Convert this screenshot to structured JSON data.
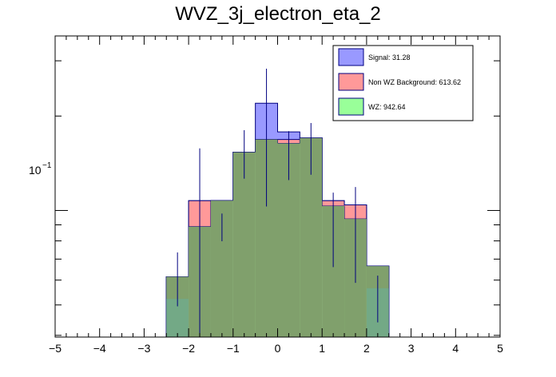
{
  "chart_data": {
    "type": "bar",
    "title": "WVZ_3j_electron_eta_2",
    "xlabel": "",
    "ylabel": "",
    "x_edges": [
      -2.5,
      -2.0,
      -1.5,
      -1.0,
      -0.5,
      0.0,
      0.5,
      1.0,
      1.5,
      2.0,
      2.5
    ],
    "xlim": [
      -5,
      5
    ],
    "ylim": [
      0.0395,
      0.36
    ],
    "y_scale": "log",
    "stacked": true,
    "x_tick_labels": [
      "−5",
      "−4",
      "−3",
      "−2",
      "−1",
      "0",
      "1",
      "2",
      "3",
      "4",
      "5"
    ],
    "y_tick_label_base": "10",
    "y_tick_label_exp": "−1",
    "grid": false,
    "legend_position": "top-right",
    "series": [
      {
        "name": "WZ",
        "legend": "WZ: 942.64",
        "color": "#99ff99",
        "values": [
          0.0615,
          0.0888,
          0.1076,
          0.1533,
          0.1684,
          0.1637,
          0.1702,
          0.1033,
          0.094,
          0.0665
        ]
      },
      {
        "name": "Non WZ Background",
        "legend": "Non WZ Background: 613.62",
        "color": "#ff9999",
        "values": [
          0.0615,
          0.1075,
          0.1075,
          0.1533,
          0.1684,
          0.1684,
          0.1702,
          0.1075,
          0.1042,
          0.0665
        ]
      },
      {
        "name": "Signal",
        "legend": "Signal: 31.28",
        "color": "#9999ff",
        "values": [
          0.0615,
          0.1075,
          0.1075,
          0.1533,
          0.2197,
          0.178,
          0.1702,
          0.1075,
          0.1042,
          0.0665
        ]
      }
    ],
    "data_points": [
      {
        "x": -2.25,
        "y": 0.0615,
        "err": 0.004
      },
      {
        "x": -1.75,
        "y": 0.0888,
        "err": 0.023
      },
      {
        "x": -1.25,
        "y": 0.0888,
        "err": 0.003
      },
      {
        "x": -0.75,
        "y": 0.1533,
        "err": 0.009
      },
      {
        "x": -0.25,
        "y": 0.193,
        "err": 0.03
      },
      {
        "x": 0.25,
        "y": 0.152,
        "err": 0.009
      },
      {
        "x": 0.75,
        "y": 0.16,
        "err": 0.01
      },
      {
        "x": 1.25,
        "y": 0.09,
        "err": 0.008
      },
      {
        "x": 1.75,
        "y": 0.0888,
        "err": 0.01
      },
      {
        "x": 2.25,
        "y": 0.053,
        "err": 0.003
      }
    ]
  }
}
